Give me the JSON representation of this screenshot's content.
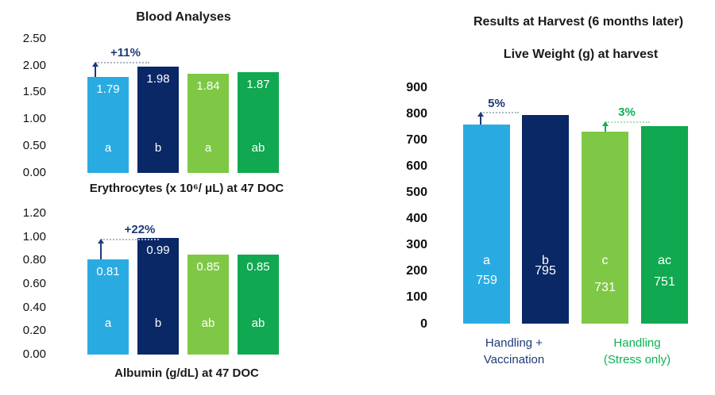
{
  "titles": {
    "left_panel": "Blood Analyses",
    "right_panel": "Results at Harvest (6 months later)"
  },
  "palette": {
    "light_blue": "#29ABE2",
    "navy": "#0A2766",
    "light_green": "#7EC845",
    "dark_green": "#10A850",
    "annotation_navy": "#1E3A78",
    "annotation_green": "#0CB053",
    "dash_gray": "#AEB6C4",
    "dash_green": "#A8DCB8",
    "text_black": "#1a1a1a"
  },
  "chart_data": [
    {
      "id": "erythrocytes",
      "type": "bar",
      "title": "Blood Analyses",
      "xlabel": "Erythrocytes (x 10⁶/ μL) at 47 DOC",
      "values": [
        1.79,
        1.98,
        1.84,
        1.87
      ],
      "value_labels": [
        "1.79",
        "1.98",
        "1.84",
        "1.87"
      ],
      "significance_letters": [
        "a",
        "b",
        "a",
        "ab"
      ],
      "bar_colors": [
        "#29ABE2",
        "#0A2766",
        "#7EC845",
        "#10A850"
      ],
      "y_ticks": [
        "2.50",
        "2.00",
        "1.50",
        "1.00",
        "0.50",
        "0.00"
      ],
      "y_tick_values": [
        2.5,
        2.0,
        1.5,
        1.0,
        0.5,
        0.0
      ],
      "ylim": [
        0,
        2.5
      ],
      "grid": false,
      "annotations": [
        {
          "text": "+11%",
          "color": "#1E3A78",
          "dash_color": "#AEB6C4"
        }
      ]
    },
    {
      "id": "albumin",
      "type": "bar",
      "xlabel": "Albumin (g/dL) at 47 DOC",
      "values": [
        0.81,
        0.99,
        0.85,
        0.85
      ],
      "value_labels": [
        "0.81",
        "0.99",
        "0.85",
        "0.85"
      ],
      "significance_letters": [
        "a",
        "b",
        "ab",
        "ab"
      ],
      "bar_colors": [
        "#29ABE2",
        "#0A2766",
        "#7EC845",
        "#10A850"
      ],
      "y_ticks": [
        "1.20",
        "1.00",
        "0.80",
        "0.60",
        "0.40",
        "0.20",
        "0.00"
      ],
      "y_tick_values": [
        1.2,
        1.0,
        0.8,
        0.6,
        0.4,
        0.2,
        0.0
      ],
      "ylim": [
        0,
        1.2
      ],
      "grid": false,
      "annotations": [
        {
          "text": "+22%",
          "color": "#1E3A78",
          "dash_color": "#AEB6C4"
        }
      ]
    },
    {
      "id": "live-weight",
      "type": "bar",
      "title": "Live Weight (g) at harvest",
      "values": [
        759,
        795,
        731,
        751
      ],
      "value_labels": [
        "759",
        "795",
        "731",
        "751"
      ],
      "significance_letters": [
        "a",
        "b",
        "c",
        "ac"
      ],
      "bar_colors": [
        "#29ABE2",
        "#0A2766",
        "#7EC845",
        "#10A850"
      ],
      "y_ticks": [
        "900",
        "800",
        "700",
        "600",
        "500",
        "400",
        "300",
        "200",
        "100",
        "0"
      ],
      "y_tick_values": [
        900,
        800,
        700,
        600,
        500,
        400,
        300,
        200,
        100,
        0
      ],
      "ylim": [
        0,
        900
      ],
      "grid": false,
      "annotations": [
        {
          "text": "5%",
          "color": "#1E3A78",
          "dash_color": "#AEB6C4"
        },
        {
          "text": "3%",
          "color": "#0CB053",
          "dash_color": "#A8DCB8"
        }
      ],
      "groups": [
        {
          "lines": [
            "Handling +",
            "Vaccination"
          ],
          "color": "#1E3A78"
        },
        {
          "lines": [
            "Handling",
            "(Stress only)"
          ],
          "color": "#0CB053"
        }
      ]
    }
  ]
}
